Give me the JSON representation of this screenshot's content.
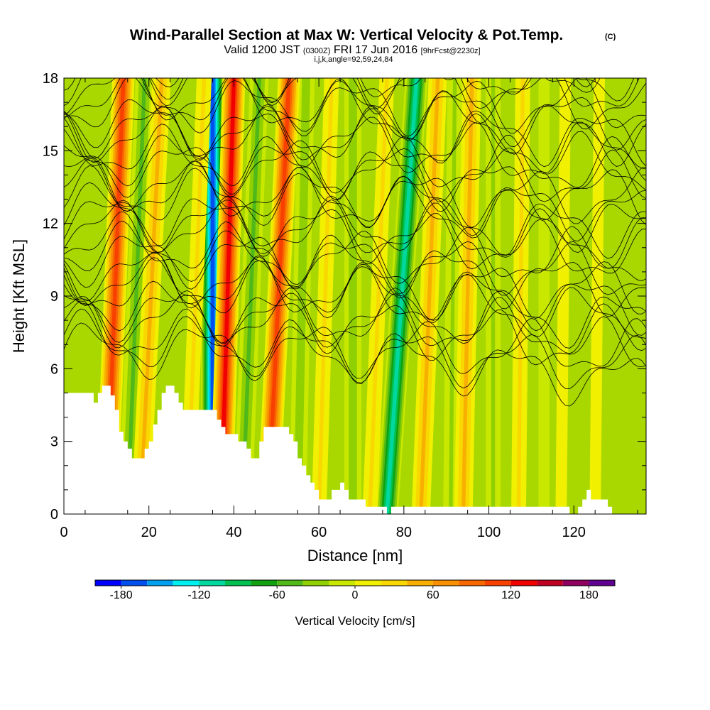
{
  "chart_data": {
    "type": "heatmap",
    "title": "Wind-Parallel Section at Max W: Vertical Velocity & Pot.Temp.",
    "title_mark": "(C)",
    "subtitle": {
      "prefix": "Valid 1200 JST",
      "utc": "(0300Z)",
      "date": "FRI 17 Jun 2016",
      "forecast": "[9hrFcst@2230z]"
    },
    "meta": "i,j,k,angle=92,59,24,84",
    "xlabel": "Distance [nm]",
    "ylabel": "Height [Kft MSL]",
    "xlim": [
      0,
      137
    ],
    "ylim": [
      0,
      18
    ],
    "x_ticks": [
      0,
      20,
      40,
      60,
      80,
      100,
      120
    ],
    "y_ticks": [
      0,
      3,
      6,
      9,
      12,
      15,
      18
    ],
    "x_tick_labels": [
      "0",
      "20",
      "40",
      "60",
      "80",
      "100",
      "120"
    ],
    "y_tick_labels": [
      "0",
      "3",
      "6",
      "9",
      "12",
      "15",
      "18"
    ],
    "colorbar": {
      "title": "Vertical Velocity [cm/s]",
      "min": -200,
      "max": 200,
      "step": 20,
      "tick_values": [
        -180,
        -120,
        -60,
        0,
        60,
        120,
        180
      ],
      "tick_labels": [
        "-180",
        "-120",
        "-60",
        "0",
        "60",
        "120",
        "180"
      ],
      "colors": [
        "#0000ff",
        "#0050f0",
        "#00a0f0",
        "#00f0f0",
        "#00d8a0",
        "#00c050",
        "#10a010",
        "#50b818",
        "#90d000",
        "#c8e800",
        "#f0f000",
        "#f8d800",
        "#f8b000",
        "#f89000",
        "#f86800",
        "#f84000",
        "#f00000",
        "#c00020",
        "#900060",
        "#600090"
      ]
    },
    "updraft_bands": [
      {
        "x_top": 14,
        "x_bottom": 10,
        "value": 120
      },
      {
        "x_top": 23,
        "x_bottom": 18,
        "value": 60
      },
      {
        "x_top": 33,
        "x_bottom": 29,
        "value": 40
      },
      {
        "x_top": 40,
        "x_bottom": 37,
        "value": 140
      },
      {
        "x_top": 53,
        "x_bottom": 48,
        "value": 120
      },
      {
        "x_top": 63,
        "x_bottom": 60,
        "value": 40
      },
      {
        "x_top": 76,
        "x_bottom": 72,
        "value": 40
      },
      {
        "x_top": 88,
        "x_bottom": 84,
        "value": 60
      },
      {
        "x_top": 96,
        "x_bottom": 94,
        "value": 60
      },
      {
        "x_top": 108,
        "x_bottom": 107,
        "value": 40
      },
      {
        "x_top": 118,
        "x_bottom": 117,
        "value": 30
      },
      {
        "x_top": 126,
        "x_bottom": 125,
        "value": 30
      }
    ],
    "downdraft_bands": [
      {
        "x_top": 19,
        "x_bottom": 15,
        "value": -60
      },
      {
        "x_top": 35,
        "x_bottom": 35,
        "value": -180
      },
      {
        "x_top": 46,
        "x_bottom": 42,
        "value": -60
      },
      {
        "x_top": 57,
        "x_bottom": 55,
        "value": -50
      },
      {
        "x_top": 68,
        "x_bottom": 68,
        "value": -50
      },
      {
        "x_top": 83,
        "x_bottom": 76,
        "value": -120
      },
      {
        "x_top": 92,
        "x_bottom": 91,
        "value": -40
      },
      {
        "x_top": 101,
        "x_bottom": 101,
        "value": -40
      },
      {
        "x_top": 113,
        "x_bottom": 113,
        "value": -30
      }
    ],
    "terrain_profile": [
      [
        0,
        5.0
      ],
      [
        7,
        5.0
      ],
      [
        7,
        4.6
      ],
      [
        8,
        4.6
      ],
      [
        8,
        5.0
      ],
      [
        9,
        5.0
      ],
      [
        9,
        5.3
      ],
      [
        11,
        5.3
      ],
      [
        11,
        4.9
      ],
      [
        12,
        4.9
      ],
      [
        12,
        4.3
      ],
      [
        13,
        4.3
      ],
      [
        13,
        3.4
      ],
      [
        14,
        3.4
      ],
      [
        14,
        3.0
      ],
      [
        15,
        3.0
      ],
      [
        15,
        2.7
      ],
      [
        16,
        2.7
      ],
      [
        16,
        2.3
      ],
      [
        19,
        2.3
      ],
      [
        19,
        2.7
      ],
      [
        20,
        2.7
      ],
      [
        20,
        3.0
      ],
      [
        21,
        3.0
      ],
      [
        21,
        3.7
      ],
      [
        22,
        3.7
      ],
      [
        22,
        4.3
      ],
      [
        23,
        4.3
      ],
      [
        23,
        5.0
      ],
      [
        24,
        5.0
      ],
      [
        24,
        5.3
      ],
      [
        26,
        5.3
      ],
      [
        26,
        5.0
      ],
      [
        27,
        5.0
      ],
      [
        27,
        4.6
      ],
      [
        28,
        4.6
      ],
      [
        28,
        4.3
      ],
      [
        36,
        4.3
      ],
      [
        36,
        3.9
      ],
      [
        37,
        3.9
      ],
      [
        37,
        3.6
      ],
      [
        38,
        3.6
      ],
      [
        38,
        3.3
      ],
      [
        41,
        3.3
      ],
      [
        41,
        3.0
      ],
      [
        43,
        3.0
      ],
      [
        43,
        2.7
      ],
      [
        44,
        2.7
      ],
      [
        44,
        2.3
      ],
      [
        46,
        2.3
      ],
      [
        46,
        3.0
      ],
      [
        47,
        3.0
      ],
      [
        47,
        3.6
      ],
      [
        53,
        3.6
      ],
      [
        53,
        3.3
      ],
      [
        54,
        3.3
      ],
      [
        54,
        3.0
      ],
      [
        55,
        3.0
      ],
      [
        55,
        2.3
      ],
      [
        56,
        2.3
      ],
      [
        56,
        2.0
      ],
      [
        57,
        2.0
      ],
      [
        57,
        1.6
      ],
      [
        58,
        1.6
      ],
      [
        58,
        1.3
      ],
      [
        59,
        1.3
      ],
      [
        59,
        1.0
      ],
      [
        60,
        1.0
      ],
      [
        60,
        0.6
      ],
      [
        63,
        0.6
      ],
      [
        63,
        1.0
      ],
      [
        65,
        1.0
      ],
      [
        65,
        1.3
      ],
      [
        66,
        1.3
      ],
      [
        66,
        1.0
      ],
      [
        67,
        1.0
      ],
      [
        67,
        0.6
      ],
      [
        71,
        0.6
      ],
      [
        71,
        0.3
      ],
      [
        76,
        0.3
      ],
      [
        76,
        0.0
      ],
      [
        77,
        0.0
      ],
      [
        77,
        0.3
      ],
      [
        119,
        0.3
      ],
      [
        119,
        0.0
      ],
      [
        121,
        0.0
      ],
      [
        121,
        0.3
      ],
      [
        122,
        0.3
      ],
      [
        122,
        0.6
      ],
      [
        123,
        0.6
      ],
      [
        123,
        1.0
      ],
      [
        124,
        1.0
      ],
      [
        124,
        0.6
      ],
      [
        128,
        0.6
      ],
      [
        128,
        0.3
      ],
      [
        129,
        0.3
      ],
      [
        129,
        0.0
      ],
      [
        137,
        0.0
      ]
    ]
  }
}
